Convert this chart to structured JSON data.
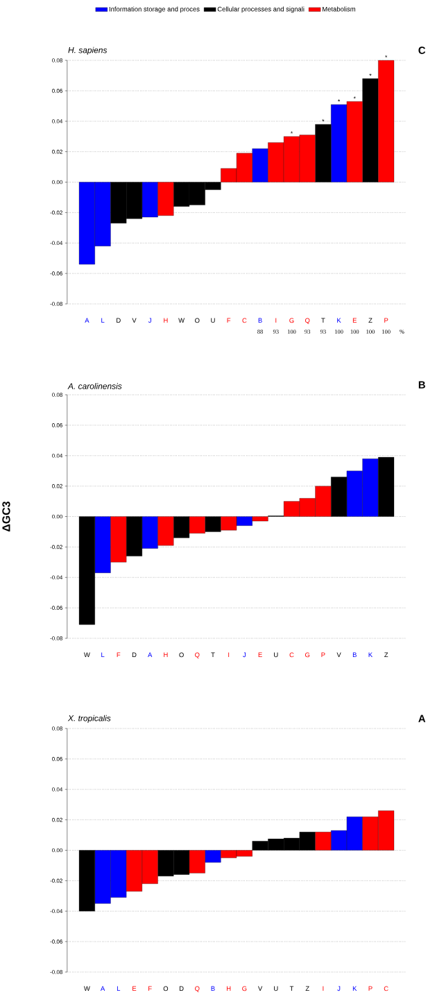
{
  "chart_data": [
    {
      "type": "bar",
      "title": "H. sapiens",
      "categories": [
        "A",
        "L",
        "D",
        "V",
        "J",
        "H",
        "W",
        "O",
        "U",
        "F",
        "C",
        "B",
        "I",
        "G",
        "Q",
        "T",
        "K",
        "E",
        "Z",
        "P"
      ],
      "series": [
        {
          "name": "Information storage and proces",
          "color": "#0000ff",
          "values": [
            -0.054,
            -0.042,
            null,
            null,
            -0.023,
            null,
            null,
            null,
            null,
            null,
            null,
            0.022,
            null,
            null,
            null,
            null,
            0.051,
            null,
            null,
            null
          ]
        },
        {
          "name": "Cellular processes and signali",
          "color": "#000000",
          "values": [
            null,
            null,
            -0.027,
            -0.024,
            null,
            null,
            -0.016,
            -0.015,
            -0.005,
            null,
            null,
            null,
            null,
            null,
            null,
            0.038,
            null,
            null,
            0.068,
            null
          ]
        },
        {
          "name": "Metabolism",
          "color": "#ff0000",
          "values": [
            null,
            null,
            null,
            null,
            null,
            -0.022,
            null,
            null,
            null,
            0.009,
            0.019,
            null,
            0.026,
            0.03,
            0.031,
            null,
            null,
            0.053,
            null,
            0.08
          ]
        }
      ],
      "ylim": [
        -0.08,
        0.08
      ],
      "yticks": [
        {
          "value": -0.08,
          "label": "-0.08"
        },
        {
          "value": -0.06,
          "label": "-0.06"
        },
        {
          "value": -0.04,
          "label": "-0.04"
        },
        {
          "value": -0.02,
          "label": "-0.02"
        },
        {
          "value": 0,
          "label": "0.00"
        },
        {
          "value": 0.02,
          "label": "0.02"
        },
        {
          "value": 0.04,
          "label": "0.04"
        },
        {
          "value": 0.06,
          "label": "0.06"
        },
        {
          "value": 0.08,
          "label": "0.08"
        }
      ],
      "grid": "y",
      "legend": "top",
      "annotations": [
        "C",
        "88",
        "93",
        "100",
        "93",
        "93",
        "100",
        "100",
        "100",
        "100",
        "%",
        {
          "text": "*",
          "x": "G",
          "y": 0.03
        },
        {
          "text": "*",
          "x": "T",
          "y": 0.038
        },
        {
          "text": "*",
          "x": "K",
          "y": 0.051
        },
        {
          "text": "*",
          "x": "E",
          "y": 0.053
        },
        {
          "text": "*",
          "x": "Z",
          "y": 0.068
        },
        {
          "text": "*",
          "x": "P",
          "y": 0.08
        }
      ]
    },
    {
      "type": "bar",
      "title": "A. carolinensis",
      "ylabel": "ΔGC3",
      "categories": [
        "W",
        "L",
        "F",
        "D",
        "A",
        "H",
        "O",
        "Q",
        "T",
        "I",
        "J",
        "E",
        "U",
        "C",
        "G",
        "P",
        "V",
        "B",
        "K",
        "Z"
      ],
      "series": [
        {
          "color": "#0000ff",
          "values": [
            null,
            -0.037,
            null,
            null,
            -0.021,
            null,
            null,
            null,
            null,
            null,
            -0.006,
            null,
            null,
            null,
            null,
            null,
            null,
            0.03,
            0.038,
            null
          ]
        },
        {
          "color": "#000000",
          "values": [
            -0.071,
            null,
            null,
            -0.026,
            null,
            null,
            -0.014,
            null,
            -0.01,
            null,
            null,
            null,
            0.0005,
            null,
            null,
            null,
            0.026,
            null,
            null,
            0.039
          ]
        },
        {
          "color": "#ff0000",
          "values": [
            null,
            null,
            -0.03,
            null,
            null,
            -0.019,
            null,
            -0.011,
            null,
            -0.009,
            null,
            -0.003,
            null,
            0.01,
            0.012,
            0.02,
            null,
            null,
            null,
            null
          ]
        }
      ],
      "ylim": [
        -0.08,
        0.08
      ],
      "yticks": [
        {
          "value": -0.08,
          "label": "-0.08"
        },
        {
          "value": -0.06,
          "label": "-0.06"
        },
        {
          "value": -0.04,
          "label": "-0.04"
        },
        {
          "value": -0.02,
          "label": "-0.02"
        },
        {
          "value": 0,
          "label": "0.00"
        },
        {
          "value": 0.02,
          "label": "0.02"
        },
        {
          "value": 0.04,
          "label": "0.04"
        },
        {
          "value": 0.06,
          "label": "0.06"
        },
        {
          "value": 0.08,
          "label": "0.08"
        }
      ],
      "grid": "y",
      "annotations": [
        "B"
      ]
    },
    {
      "type": "bar",
      "title": "X. tropicalis",
      "categories": [
        "W",
        "A",
        "L",
        "E",
        "F",
        "O",
        "D",
        "Q",
        "B",
        "H",
        "G",
        "V",
        "U",
        "T",
        "Z",
        "I",
        "J",
        "K",
        "P",
        "C"
      ],
      "series": [
        {
          "color": "#0000ff",
          "values": [
            null,
            -0.035,
            -0.031,
            null,
            null,
            null,
            null,
            null,
            -0.008,
            null,
            null,
            null,
            null,
            null,
            null,
            null,
            0.013,
            0.022,
            null,
            null
          ]
        },
        {
          "color": "#000000",
          "values": [
            -0.04,
            null,
            null,
            null,
            null,
            -0.017,
            -0.016,
            null,
            null,
            null,
            null,
            0.006,
            0.0075,
            0.008,
            0.012,
            null,
            null,
            null,
            null,
            null
          ]
        },
        {
          "color": "#ff0000",
          "values": [
            null,
            null,
            null,
            -0.027,
            -0.022,
            null,
            null,
            -0.015,
            null,
            -0.005,
            -0.004,
            null,
            null,
            null,
            null,
            0.012,
            null,
            null,
            0.022,
            0.026
          ]
        }
      ],
      "ylim": [
        -0.08,
        0.08
      ],
      "yticks": [
        {
          "value": -0.08,
          "label": "-0.08"
        },
        {
          "value": -0.06,
          "label": "-0.06"
        },
        {
          "value": -0.04,
          "label": "-0.04"
        },
        {
          "value": -0.02,
          "label": "-0.02"
        },
        {
          "value": 0,
          "label": "0.00"
        },
        {
          "value": 0.02,
          "label": "0.02"
        },
        {
          "value": 0.04,
          "label": "0.04"
        },
        {
          "value": 0.06,
          "label": "0.06"
        },
        {
          "value": 0.08,
          "label": "0.08"
        }
      ],
      "grid": "y",
      "annotations": [
        "A"
      ]
    }
  ]
}
